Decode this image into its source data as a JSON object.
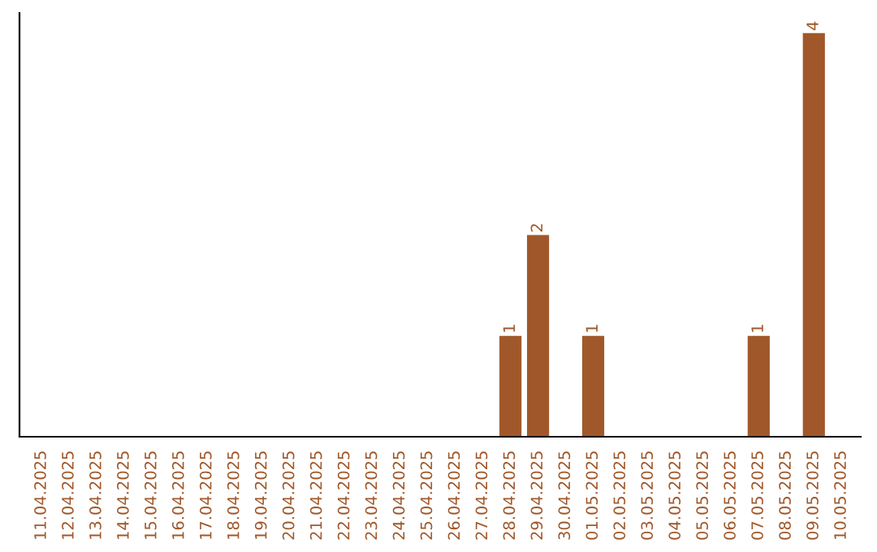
{
  "chart_data": {
    "type": "bar",
    "categories": [
      "11.04.2025",
      "12.04.2025",
      "13.04.2025",
      "14.04.2025",
      "15.04.2025",
      "16.04.2025",
      "17.04.2025",
      "18.04.2025",
      "19.04.2025",
      "20.04.2025",
      "21.04.2025",
      "22.04.2025",
      "23.04.2025",
      "24.04.2025",
      "25.04.2025",
      "26.04.2025",
      "27.04.2025",
      "28.04.2025",
      "29.04.2025",
      "30.04.2025",
      "01.05.2025",
      "02.05.2025",
      "03.05.2025",
      "04.05.2025",
      "05.05.2025",
      "06.05.2025",
      "07.05.2025",
      "08.05.2025",
      "09.05.2025",
      "10.05.2025"
    ],
    "values": [
      null,
      null,
      null,
      null,
      null,
      null,
      null,
      null,
      null,
      null,
      null,
      null,
      null,
      null,
      null,
      null,
      null,
      1,
      2,
      null,
      1,
      null,
      null,
      null,
      null,
      null,
      1,
      null,
      4,
      null
    ],
    "value_labels": [
      null,
      null,
      null,
      null,
      null,
      null,
      null,
      null,
      null,
      null,
      null,
      null,
      null,
      null,
      null,
      null,
      null,
      "1",
      "2",
      null,
      "1",
      null,
      null,
      null,
      null,
      null,
      "1",
      null,
      "4",
      null
    ],
    "color": "#a0582a",
    "tick_labels": "x",
    "grid": false,
    "legend": false
  }
}
